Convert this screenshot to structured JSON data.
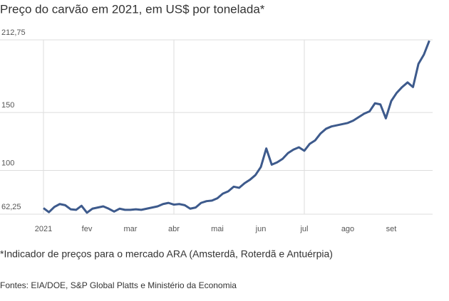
{
  "chart_data": {
    "type": "line",
    "title": "Preço do carvão em 2021, em US$ por tonelada*",
    "note": "*Indicador de preços para o mercado ARA (Amsterdâ, Roterdã e Antuérpia)",
    "source": "Fontes: EIA/DOE, S&P Global Platts e Ministério da Economia",
    "categories": [
      "2021",
      null,
      null,
      null,
      null,
      null,
      null,
      null,
      "fev",
      null,
      null,
      null,
      null,
      null,
      null,
      null,
      "mar",
      null,
      null,
      null,
      null,
      null,
      null,
      null,
      "abr",
      null,
      null,
      null,
      null,
      null,
      null,
      null,
      "mai",
      null,
      null,
      null,
      null,
      null,
      null,
      null,
      "jun",
      null,
      null,
      null,
      null,
      null,
      null,
      null,
      "jul",
      null,
      null,
      null,
      null,
      null,
      null,
      null,
      "ago",
      null,
      null,
      null,
      null,
      null,
      null,
      null,
      "set",
      null,
      null,
      null,
      null,
      null,
      null,
      null
    ],
    "series": [
      {
        "color": "#3d5a8c",
        "values": [
          67.5,
          64,
          68.5,
          71,
          70,
          66.5,
          66,
          69.5,
          63.5,
          67,
          68,
          69,
          67,
          64.5,
          67,
          66,
          66,
          66.5,
          66,
          67,
          68,
          69,
          71,
          72,
          70.5,
          71,
          70,
          67,
          68,
          72,
          73.5,
          74,
          76,
          80,
          82,
          86,
          85,
          89,
          92,
          96,
          103,
          119,
          105,
          107,
          110,
          115,
          118,
          120,
          117,
          123,
          126,
          132,
          136,
          138,
          139,
          140,
          141,
          143,
          146,
          149,
          151,
          158,
          157,
          145,
          160,
          167,
          172,
          176,
          172,
          192,
          200,
          212
        ]
      }
    ],
    "ylim": [
      62.25,
      212.75
    ],
    "yticks": [
      {
        "value": 62.25,
        "label": "62,25"
      },
      100,
      150,
      {
        "value": 212.75,
        "label": "212,75"
      }
    ],
    "grid": true
  }
}
